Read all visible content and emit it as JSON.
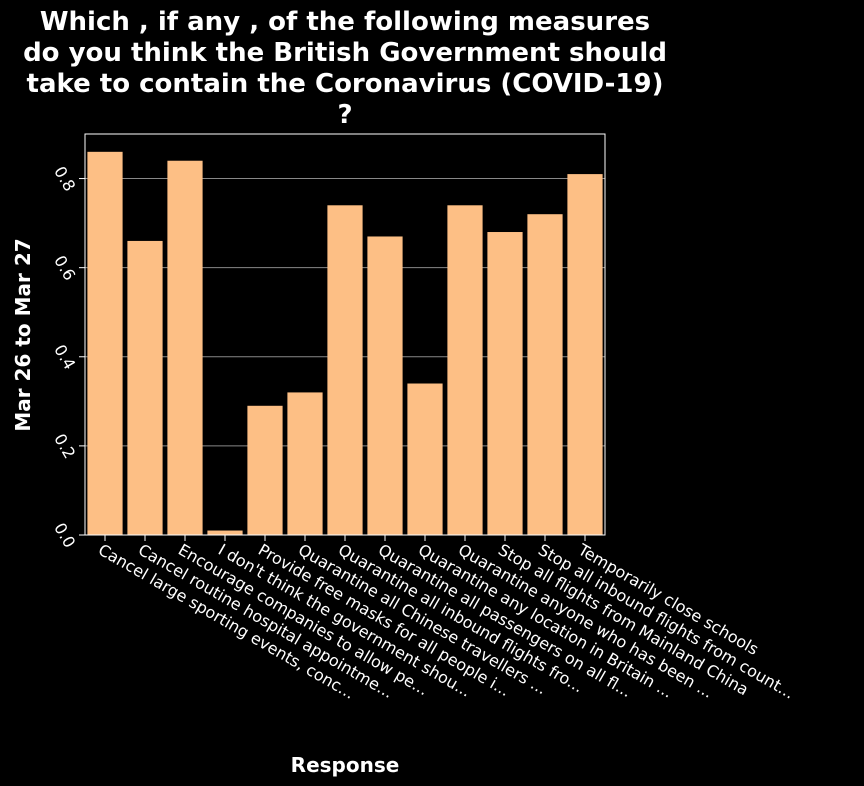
{
  "chart_data": {
    "type": "bar",
    "title_lines": [
      "Which , if any , of the following measures",
      "do you think the British Government should",
      "take to contain the Coronavirus (COVID-19)",
      "?"
    ],
    "xlabel": "Response",
    "ylabel": "Mar 26 to Mar 27",
    "ylim": [
      0,
      0.9
    ],
    "yticks": [
      0.0,
      0.2,
      0.4,
      0.6,
      0.8
    ],
    "ytick_labels": [
      "0.0",
      "0.2",
      "0.4",
      "0.6",
      "0.8"
    ],
    "grid": "horizontal",
    "categories": [
      "Cancel large sporting events, conc...",
      "Cancel routine hospital appointme...",
      "Encourage companies to allow pe...",
      "I don't think the government shou...",
      "Provide free masks for all people i...",
      "Quarantine all Chinese travellers ...",
      "Quarantine all inbound flights fro...",
      "Quarantine all passengers on all fl...",
      "Quarantine any location in Britain ...",
      "Quarantine anyone who has been ...",
      "Stop all flights from Mainland China",
      "Stop all inbound flights from count...",
      "Temporarily close schools"
    ],
    "values": [
      0.86,
      0.66,
      0.84,
      0.01,
      0.29,
      0.32,
      0.74,
      0.67,
      0.34,
      0.74,
      0.68,
      0.72,
      0.81
    ],
    "colors": {
      "background": "#000000",
      "bar": "#fdbf85",
      "text": "#ffffff",
      "grid": "#888888",
      "frame": "#ffffff"
    }
  }
}
